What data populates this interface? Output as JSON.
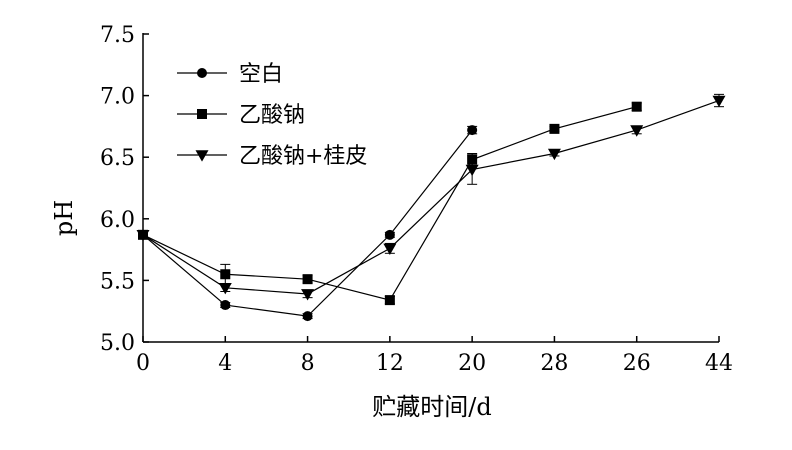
{
  "chart_data": {
    "type": "line",
    "title": "",
    "xlabel": "贮藏时间/d",
    "ylabel": "pH",
    "x_tick_labels": [
      "0",
      "4",
      "8",
      "12",
      "20",
      "28",
      "26",
      "44"
    ],
    "yticks": [
      "5.0",
      "5.5",
      "6.0",
      "6.5",
      "7.0",
      "7.5"
    ],
    "ylim": [
      5.0,
      7.5
    ],
    "grid": false,
    "legend_position": "top-left",
    "series": [
      {
        "name": "空白",
        "marker": "circle",
        "x_index": [
          0,
          1,
          2,
          3,
          4
        ],
        "values": [
          5.87,
          5.3,
          5.21,
          5.87,
          6.72
        ],
        "errors": [
          0.02,
          0.02,
          0.02,
          0.02,
          0.03
        ]
      },
      {
        "name": "乙酸钠",
        "marker": "square",
        "x_index": [
          0,
          1,
          2,
          3,
          4,
          5,
          6
        ],
        "values": [
          5.87,
          5.55,
          5.51,
          5.34,
          6.48,
          6.73,
          6.91
        ],
        "errors": [
          0.02,
          0.08,
          0.03,
          0.03,
          0.05,
          0.02,
          0.03
        ]
      },
      {
        "name": "乙酸钠+桂皮",
        "marker": "triangle-down",
        "x_index": [
          0,
          1,
          2,
          3,
          4,
          5,
          6,
          7
        ],
        "values": [
          5.87,
          5.44,
          5.39,
          5.76,
          6.4,
          6.53,
          6.72,
          6.96
        ],
        "errors": [
          0.02,
          0.03,
          0.03,
          0.04,
          0.12,
          0.02,
          0.03,
          0.05
        ]
      }
    ]
  }
}
